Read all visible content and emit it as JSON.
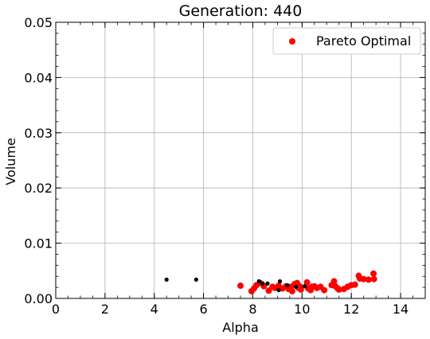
{
  "chart_data": {
    "type": "scatter",
    "title": "Generation: 440",
    "xlabel": "Alpha",
    "ylabel": "Volume",
    "xlim": [
      0,
      15
    ],
    "ylim": [
      0,
      0.05
    ],
    "xticks": [
      0,
      2,
      4,
      6,
      8,
      10,
      12,
      14
    ],
    "xtick_labels": [
      "0",
      "2",
      "4",
      "6",
      "8",
      "10",
      "12",
      "14"
    ],
    "yticks": [
      0,
      0.01,
      0.02,
      0.03,
      0.04,
      0.05
    ],
    "ytick_labels": [
      "0.00",
      "0.01",
      "0.02",
      "0.03",
      "0.04",
      "0.05"
    ],
    "grid": true,
    "legend_position": "top-right",
    "colors": {
      "pareto": "#ff0000",
      "other": "#000000"
    },
    "series": [
      {
        "name": "Pareto Optimal",
        "color": "#ff0000",
        "points": [
          [
            7.5,
            0.0023
          ],
          [
            7.95,
            0.0013
          ],
          [
            8.05,
            0.0018
          ],
          [
            8.15,
            0.0024
          ],
          [
            8.3,
            0.0028
          ],
          [
            8.45,
            0.0022
          ],
          [
            8.65,
            0.0014
          ],
          [
            8.8,
            0.0021
          ],
          [
            8.9,
            0.0019
          ],
          [
            9.05,
            0.0023
          ],
          [
            9.2,
            0.0018
          ],
          [
            9.35,
            0.0022
          ],
          [
            9.45,
            0.0017
          ],
          [
            9.55,
            0.0021
          ],
          [
            9.6,
            0.0013
          ],
          [
            9.7,
            0.0026
          ],
          [
            9.8,
            0.0028
          ],
          [
            9.85,
            0.0019
          ],
          [
            9.9,
            0.0022
          ],
          [
            9.95,
            0.0016
          ],
          [
            10.2,
            0.0029
          ],
          [
            10.25,
            0.0018
          ],
          [
            10.35,
            0.0015
          ],
          [
            10.4,
            0.0021
          ],
          [
            10.5,
            0.0022
          ],
          [
            10.6,
            0.0019
          ],
          [
            10.75,
            0.0021
          ],
          [
            10.9,
            0.0015
          ],
          [
            11.2,
            0.0024
          ],
          [
            11.3,
            0.0031
          ],
          [
            11.35,
            0.0022
          ],
          [
            11.45,
            0.0018
          ],
          [
            11.5,
            0.0016
          ],
          [
            11.7,
            0.0017
          ],
          [
            11.85,
            0.0021
          ],
          [
            12.0,
            0.0024
          ],
          [
            12.15,
            0.0025
          ],
          [
            12.3,
            0.0041
          ],
          [
            12.35,
            0.0036
          ],
          [
            12.5,
            0.0035
          ],
          [
            12.7,
            0.0034
          ],
          [
            12.9,
            0.0045
          ],
          [
            12.92,
            0.0035
          ]
        ]
      },
      {
        "name": "",
        "color": "#000000",
        "points": [
          [
            4.5,
            0.0034
          ],
          [
            5.7,
            0.0034
          ],
          [
            8.25,
            0.0031
          ],
          [
            8.4,
            0.0027
          ],
          [
            8.6,
            0.0027
          ],
          [
            9.05,
            0.0015
          ],
          [
            9.1,
            0.0031
          ],
          [
            9.4,
            0.0024
          ],
          [
            9.75,
            0.0021
          ],
          [
            10.1,
            0.0022
          ]
        ]
      }
    ]
  }
}
